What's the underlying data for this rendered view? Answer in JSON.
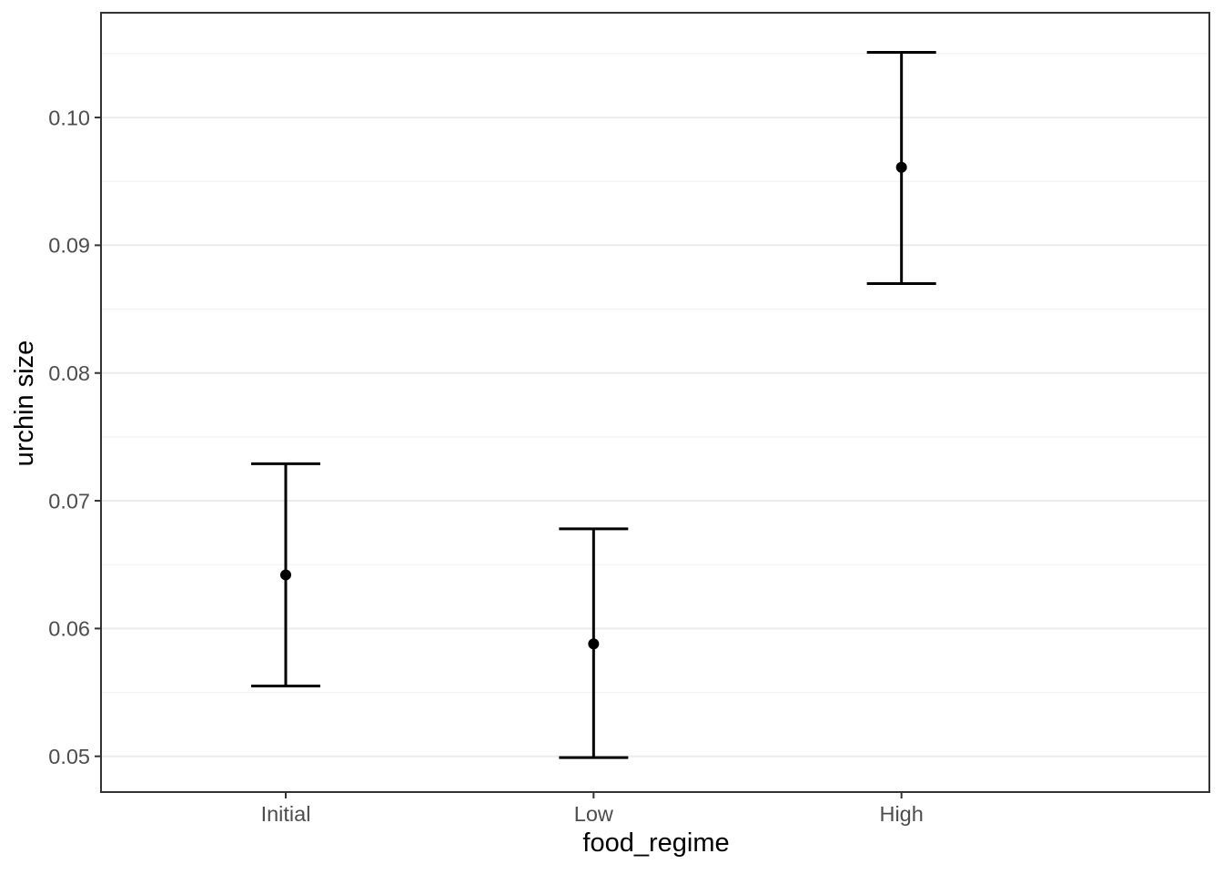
{
  "chart_data": {
    "type": "pointrange",
    "title": "",
    "xlabel": "food_regime",
    "ylabel": "urchin size",
    "categories": [
      "Initial",
      "Low",
      "High"
    ],
    "series": [
      {
        "name": "mean_prediction",
        "values": [
          0.0642,
          0.0588,
          0.0961
        ]
      },
      {
        "name": "conf_low",
        "values": [
          0.0555,
          0.0499,
          0.087
        ]
      },
      {
        "name": "conf_high",
        "values": [
          0.0729,
          0.0678,
          0.1051
        ]
      }
    ],
    "ylim": [
      0.0472,
      0.1082
    ],
    "yticks": [
      0.05,
      0.06,
      0.07,
      0.08,
      0.09,
      0.1
    ],
    "ytick_labels": [
      "0.05",
      "0.06",
      "0.07",
      "0.08",
      "0.09",
      "0.10"
    ],
    "yticks_minor": [
      0.055,
      0.065,
      0.075,
      0.085,
      0.095,
      0.105
    ],
    "grid": true,
    "legend_position": "none"
  },
  "colors": {
    "background": "#FFFFFF",
    "axis_text": "#4D4D4D",
    "axis_title": "#000000",
    "panel_border": "#333333",
    "tick_mark": "#333333",
    "grid_major": "#EBEBEB",
    "grid_minor": "#F2F2F2",
    "data": "#000000"
  }
}
